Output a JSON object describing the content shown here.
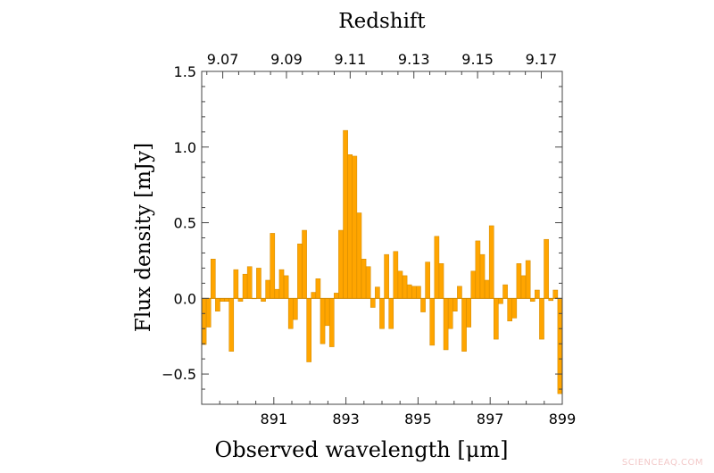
{
  "chart_data": {
    "type": "bar",
    "style": "step histogram",
    "title": "Redshift",
    "xlabel": "Observed wavelength [μm]",
    "ylabel": "Flux density [mJy]",
    "xlim": [
      889,
      899
    ],
    "ylim": [
      -0.7,
      1.5
    ],
    "grid": false,
    "bar_color": "#FFA500",
    "edge_color": "#D08800",
    "x_ticks": [
      "891",
      "893",
      "895",
      "897",
      "899"
    ],
    "y_ticks": [
      "−0.5",
      "0.0",
      "0.5",
      "1.0",
      "1.5"
    ],
    "top_axis": {
      "label": "Redshift",
      "ticks": [
        "9.07",
        "9.09",
        "9.11",
        "9.13",
        "9.15",
        "9.17"
      ]
    },
    "bin_range": [
      889,
      899
    ],
    "values": [
      -0.305,
      -0.19,
      0.26,
      -0.085,
      -0.02,
      -0.02,
      -0.35,
      0.19,
      -0.02,
      0.16,
      0.21,
      0.0,
      0.2,
      -0.02,
      0.12,
      0.43,
      0.06,
      0.19,
      0.15,
      -0.2,
      -0.14,
      0.36,
      0.45,
      -0.42,
      0.04,
      0.13,
      -0.3,
      -0.18,
      -0.32,
      0.035,
      0.45,
      1.11,
      0.95,
      0.94,
      0.565,
      0.26,
      0.21,
      -0.06,
      0.075,
      -0.2,
      0.29,
      -0.2,
      0.31,
      0.18,
      0.15,
      0.09,
      0.08,
      0.08,
      -0.09,
      0.24,
      -0.31,
      0.41,
      0.23,
      -0.34,
      -0.2,
      -0.085,
      0.08,
      -0.35,
      -0.19,
      0.18,
      0.38,
      0.29,
      0.12,
      0.48,
      -0.27,
      -0.035,
      0.09,
      -0.15,
      -0.13,
      0.23,
      0.15,
      0.25,
      -0.02,
      0.055,
      -0.27,
      0.39,
      -0.015,
      0.055,
      -0.63
    ]
  },
  "watermark": "SCIENCEAQ.COM"
}
